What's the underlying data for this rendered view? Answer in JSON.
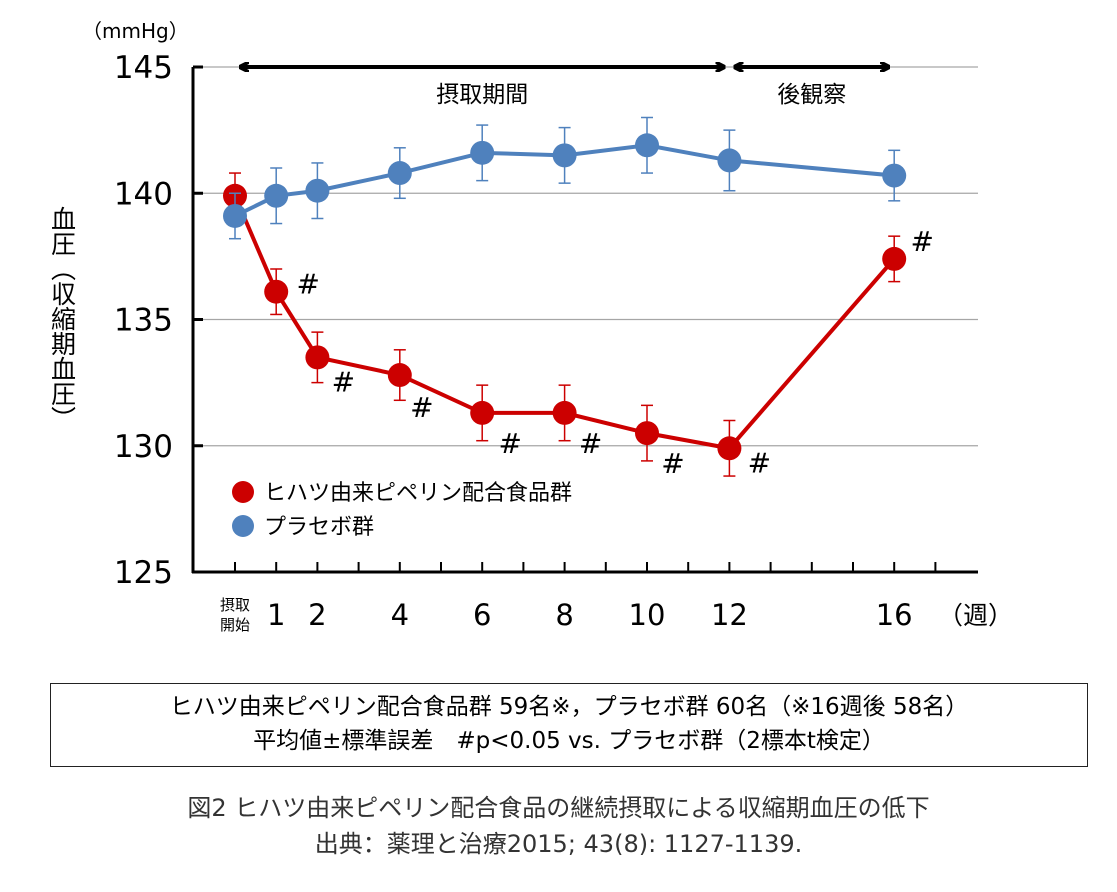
{
  "chart_data": {
    "type": "line",
    "unit_label": "（mmHg）",
    "ylabel": "血圧（収縮期血圧）",
    "xlabel": "（週）",
    "ylim": [
      125,
      145
    ],
    "yticks": [
      125,
      130,
      135,
      140,
      145
    ],
    "grid": true,
    "legend_position": "lower-left",
    "x_tick_labels": [
      {
        "x": 0,
        "label": "摂取開始",
        "small": true
      },
      {
        "x": 1,
        "label": "1"
      },
      {
        "x": 2,
        "label": "2"
      },
      {
        "x": 4,
        "label": "4"
      },
      {
        "x": 6,
        "label": "6"
      },
      {
        "x": 8,
        "label": "8"
      },
      {
        "x": 10,
        "label": "10"
      },
      {
        "x": 12,
        "label": "12"
      },
      {
        "x": 16,
        "label": "16"
      }
    ],
    "periods": [
      {
        "label": "摂取期間",
        "from": 0,
        "to": 12
      },
      {
        "label": "後観察",
        "from": 12,
        "to": 16
      }
    ],
    "series": [
      {
        "name": "ヒハツ由来ピペリン配合食品群",
        "color": "#cc0000",
        "x": [
          0,
          1,
          2,
          4,
          6,
          8,
          10,
          12,
          16
        ],
        "values": [
          139.9,
          136.1,
          133.5,
          132.8,
          131.3,
          131.3,
          130.5,
          129.9,
          137.4
        ],
        "errors": [
          0.9,
          0.9,
          1.0,
          1.0,
          1.1,
          1.1,
          1.1,
          1.1,
          0.9
        ],
        "marks": [
          "",
          "#",
          "#",
          "#",
          "#",
          "#",
          "#",
          "#",
          "#"
        ]
      },
      {
        "name": "プラセボ群",
        "color": "#4f81bd",
        "x": [
          0,
          1,
          2,
          4,
          6,
          8,
          10,
          12,
          16
        ],
        "values": [
          139.1,
          139.9,
          140.1,
          140.8,
          141.6,
          141.5,
          141.9,
          141.3,
          140.7
        ],
        "errors": [
          0.9,
          1.1,
          1.1,
          1.0,
          1.1,
          1.1,
          1.1,
          1.2,
          1.0
        ]
      }
    ]
  },
  "note": {
    "line1": "ヒハツ由来ピペリン配合食品群 59名※，プラセボ群 60名（※16週後 58名）",
    "line2": "平均値±標準誤差　#p<0.05  vs. プラセボ群（2標本t検定）"
  },
  "caption": {
    "line1": "図2  ヒハツ由来ピペリン配合食品の継続摂取による収縮期血圧の低下",
    "line2": "出典：薬理と治療2015; 43(8): 1127-1139."
  }
}
